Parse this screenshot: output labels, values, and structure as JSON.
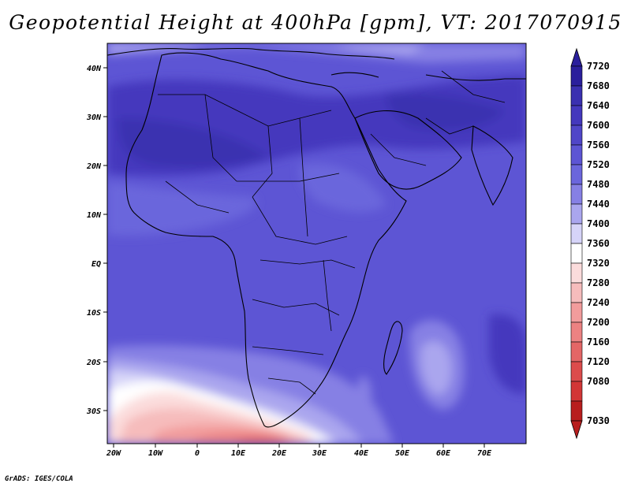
{
  "title": "Geopotential Height at 400hPa [gpm], VT: 2017070915",
  "credit": "GrADS: IGES/COLA",
  "map": {
    "region": "Africa",
    "lon_labels": [
      "20W",
      "10W",
      "0",
      "10E",
      "20E",
      "30E",
      "40E",
      "50E",
      "60E",
      "70E"
    ],
    "lat_labels": [
      "40N",
      "30N",
      "20N",
      "10N",
      "EQ",
      "10S",
      "20S",
      "30S"
    ]
  },
  "colorbar": {
    "levels": [
      "7720",
      "7680",
      "7640",
      "7600",
      "7560",
      "7520",
      "7480",
      "7440",
      "7400",
      "7360",
      "7320",
      "7280",
      "7240",
      "7200",
      "7160",
      "7120",
      "7080",
      "7030"
    ],
    "colors": [
      "#2a1f9c",
      "#3a30b0",
      "#4438bd",
      "#5046c8",
      "#5d55d4",
      "#6b66dc",
      "#8680e4",
      "#aaa6ee",
      "#d6d4f8",
      "#ffffff",
      "#fbdcdc",
      "#f6bcbc",
      "#f29c9c",
      "#ec8282",
      "#e46666",
      "#dc4c4c",
      "#d23636",
      "#b81e1e"
    ]
  }
}
